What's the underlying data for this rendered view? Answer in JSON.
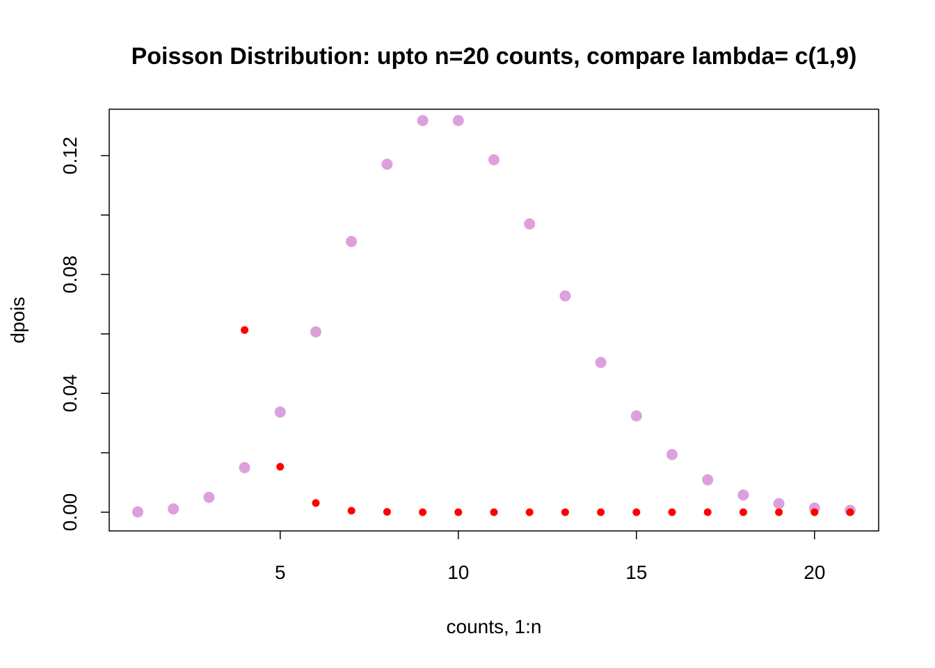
{
  "chart_data": {
    "type": "scatter",
    "title": "Poisson Distribution: upto n=20 counts, compare lambda= c(1,9)",
    "xlabel": "counts, 1:n",
    "ylabel": "dpois",
    "xlim": [
      0.2,
      21.8
    ],
    "ylim": [
      -0.0063,
      0.1356
    ],
    "x_ticks": [
      5,
      10,
      15,
      20
    ],
    "y_ticks": [
      0.0,
      0.04,
      0.08,
      0.12
    ],
    "x_tick_labels": [
      "5",
      "10",
      "15",
      "20"
    ],
    "y_tick_labels": [
      "0.00",
      "0.04",
      "0.08",
      "0.12"
    ],
    "y_minor_ticks": [
      0.02,
      0.06,
      0.1
    ],
    "grid": false,
    "legend": "none",
    "series": [
      {
        "color": "#DDA0DD",
        "marker": "large-dot",
        "x": [
          1,
          2,
          3,
          4,
          5,
          6,
          7,
          8,
          9,
          10,
          11,
          12,
          13,
          14,
          15,
          16,
          17,
          18,
          19,
          20,
          21
        ],
        "y": [
          0.0001,
          0.0011,
          0.005,
          0.015,
          0.0337,
          0.0607,
          0.0911,
          0.1171,
          0.1318,
          0.1318,
          0.1186,
          0.097,
          0.0728,
          0.0504,
          0.0324,
          0.0194,
          0.0109,
          0.0058,
          0.0029,
          0.0014,
          0.0006
        ]
      },
      {
        "color": "#FF0000",
        "marker": "small-dot",
        "x": [
          4,
          5,
          6,
          7,
          8,
          9,
          10,
          11,
          12,
          13,
          14,
          15,
          16,
          17,
          18,
          19,
          20,
          21
        ],
        "y": [
          0.0613,
          0.0153,
          0.0031,
          0.0005,
          0.0001,
          0,
          0,
          0,
          0,
          0,
          0,
          0,
          0,
          0,
          0,
          0,
          0,
          0
        ]
      }
    ]
  }
}
